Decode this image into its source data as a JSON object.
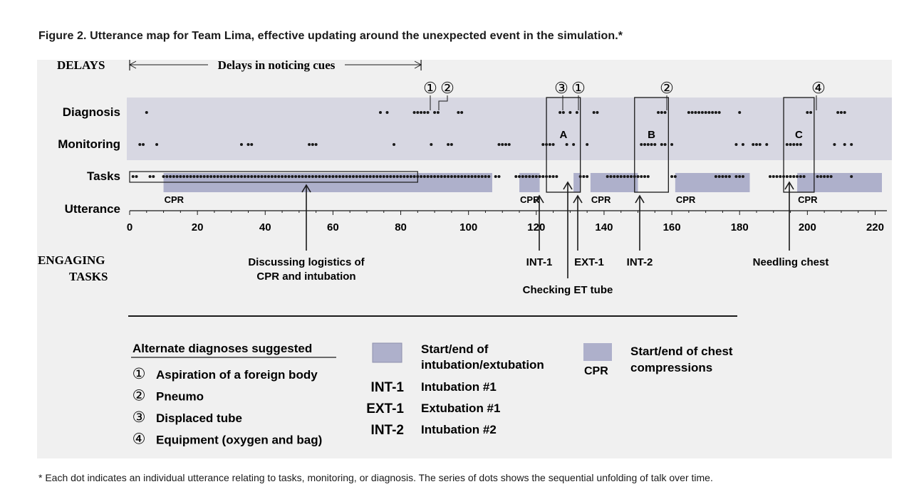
{
  "figure_title": "Figure 2.  Utterance map for Team Lima, effective updating around the unexpected event in the simulation.*",
  "footnote": "* Each dot indicates an individual utterance relating to tasks, monitoring, or diagnosis. The series of dots shows the sequential unfolding of talk over time.",
  "delays": {
    "label": "DELAYS",
    "range_text": "Delays in noticing cues",
    "range": [
      0,
      86
    ]
  },
  "engaging": {
    "label_line1": "ENGAGING",
    "label_line2": "TASKS"
  },
  "colors": {
    "band": "#d7d7e2",
    "cpr": "#aeb0cb",
    "dot": "#1a1a1a",
    "accent": "#1a1a1a"
  },
  "chart_data": {
    "type": "scatter",
    "title": "Utterance map for Team Lima, effective updating around the unexpected event in the simulation.",
    "xlabel": "Utterance",
    "xlim": [
      0,
      222
    ],
    "xticks": [
      0,
      20,
      40,
      60,
      80,
      100,
      120,
      140,
      160,
      180,
      200,
      220
    ],
    "rows": [
      "Diagnosis",
      "Monitoring",
      "Tasks"
    ],
    "series": [
      {
        "name": "Diagnosis",
        "points": [
          5,
          74,
          76,
          84,
          85,
          86,
          87,
          88,
          90,
          91,
          97,
          98,
          127,
          128,
          130,
          132,
          137,
          138,
          156,
          157,
          158,
          165,
          166,
          167,
          168,
          169,
          170,
          171,
          172,
          173,
          174,
          180,
          200,
          201,
          209,
          210,
          211
        ]
      },
      {
        "name": "Monitoring",
        "points": [
          3,
          4,
          8,
          33,
          35,
          36,
          53,
          54,
          55,
          78,
          89,
          94,
          95,
          109,
          110,
          111,
          112,
          122,
          123,
          124,
          125,
          129,
          131,
          135,
          151,
          152,
          153,
          154,
          155,
          157,
          158,
          160,
          179,
          181,
          184,
          185,
          186,
          188,
          194,
          195,
          196,
          197,
          198,
          208,
          211,
          213
        ]
      },
      {
        "name": "Tasks",
        "points": [
          1,
          2,
          6,
          7,
          10,
          11,
          12,
          13,
          14,
          15,
          16,
          17,
          18,
          19,
          20,
          21,
          22,
          23,
          24,
          25,
          26,
          27,
          28,
          29,
          30,
          31,
          32,
          33,
          34,
          35,
          36,
          37,
          38,
          39,
          40,
          41,
          42,
          43,
          44,
          45,
          46,
          47,
          48,
          49,
          50,
          51,
          52,
          53,
          54,
          55,
          56,
          57,
          58,
          59,
          60,
          61,
          62,
          63,
          64,
          65,
          66,
          67,
          68,
          69,
          70,
          71,
          72,
          73,
          74,
          75,
          76,
          77,
          78,
          79,
          80,
          81,
          82,
          83,
          84,
          85,
          86,
          87,
          88,
          89,
          90,
          91,
          92,
          93,
          94,
          95,
          96,
          97,
          98,
          99,
          100,
          101,
          102,
          103,
          104,
          105,
          106,
          108,
          109,
          114,
          115,
          116,
          117,
          118,
          119,
          120,
          121,
          122,
          123,
          124,
          125,
          126,
          133,
          134,
          135,
          141,
          142,
          143,
          144,
          145,
          146,
          147,
          148,
          149,
          150,
          151,
          152,
          153,
          160,
          161,
          173,
          174,
          175,
          176,
          177,
          179,
          180,
          181,
          189,
          190,
          191,
          192,
          193,
          194,
          195,
          196,
          197,
          198,
          199,
          203,
          204,
          205,
          206,
          207,
          213
        ]
      }
    ],
    "cpr_segments": [
      {
        "label": "CPR",
        "range": [
          10,
          107
        ]
      },
      {
        "label": "CPR",
        "range": [
          115,
          121
        ]
      },
      {
        "label": "CPR",
        "range": [
          136,
          149
        ]
      },
      {
        "label": "CPR",
        "range": [
          161,
          183
        ]
      },
      {
        "label": "CPR",
        "range": [
          197,
          222
        ]
      }
    ],
    "intubation_markers": [
      {
        "range": [
          131,
          133
        ]
      },
      {
        "range": [
          149,
          150
        ]
      }
    ],
    "boxes": [
      {
        "label": "A",
        "range": [
          123,
          133
        ]
      },
      {
        "label": "B",
        "range": [
          149,
          159
        ]
      },
      {
        "label": "C",
        "range": [
          193,
          202
        ]
      }
    ],
    "callouts": [
      {
        "symbol": "①",
        "x": 88
      },
      {
        "symbol": "②",
        "x": 91
      },
      {
        "symbol": "③",
        "x": 128
      },
      {
        "symbol": "①",
        "x": 132
      },
      {
        "symbol": "②",
        "x": 157
      },
      {
        "symbol": "④",
        "x": 201
      }
    ],
    "task_annotations": [
      {
        "lines": [
          "Discussing logistics of",
          "CPR and intubation"
        ],
        "x": 52
      },
      {
        "lines": [
          "INT-1"
        ],
        "x": 121
      },
      {
        "lines": [
          "Checking ET tube"
        ],
        "x": 129
      },
      {
        "lines": [
          "EXT-1"
        ],
        "x": 132
      },
      {
        "lines": [
          "INT-2"
        ],
        "x": 150
      },
      {
        "lines": [
          "Needling chest"
        ],
        "x": 193
      }
    ]
  },
  "legend": {
    "alt_title": "Alternate diagnoses suggested",
    "alt_items": [
      {
        "symbol": "①",
        "text": "Aspiration of a foreign body"
      },
      {
        "symbol": "②",
        "text": "Pneumo"
      },
      {
        "symbol": "③",
        "text": "Displaced tube"
      },
      {
        "symbol": "④",
        "text": "Equipment (oxygen and bag)"
      }
    ],
    "intubation_line1": "Start/end of",
    "intubation_line2": "intubation/extubation",
    "codes": [
      {
        "code": "INT-1",
        "text": "Intubation #1"
      },
      {
        "code": "EXT-1",
        "text": "Extubation #1"
      },
      {
        "code": "INT-2",
        "text": "Intubation #2"
      }
    ],
    "cpr_label": "CPR",
    "cpr_line1": "Start/end of chest",
    "cpr_line2": "compressions"
  }
}
